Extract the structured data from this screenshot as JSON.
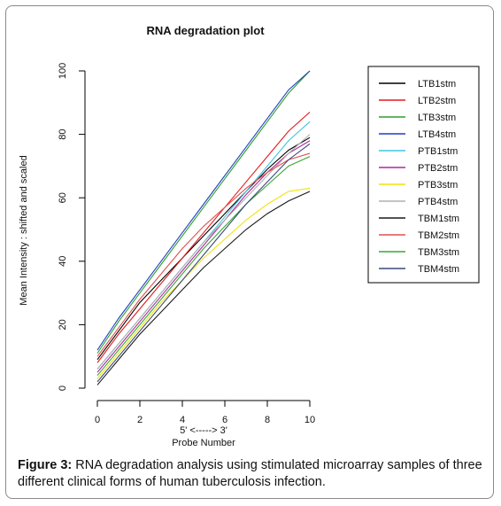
{
  "figure": {
    "caption_label": "Figure 3:",
    "caption_text": " RNA degradation analysis using stimulated microarray samples of three different clinical forms of human tuberculosis infection."
  },
  "chart_data": {
    "type": "line",
    "title": "RNA degradation plot",
    "ylabel": "Mean Intensity : shifted and scaled",
    "xlabel_top": "5' <-----> 3'",
    "xlabel": "Probe Number",
    "xlim": [
      0,
      10
    ],
    "ylim": [
      0,
      100
    ],
    "x_ticks": [
      "0",
      "2",
      "4",
      "6",
      "8",
      "10"
    ],
    "y_ticks": [
      "0",
      "20",
      "40",
      "60",
      "80",
      "100"
    ],
    "legend_position": "top-right",
    "x": [
      0,
      1,
      2,
      3,
      4,
      5,
      6,
      7,
      8,
      9,
      10
    ],
    "series": [
      {
        "name": "LTB1stm",
        "color": "#000000",
        "values": [
          9,
          18,
          27,
          34,
          41,
          48,
          55,
          62,
          69,
          75,
          79
        ]
      },
      {
        "name": "LTB2stm",
        "color": "#e41a1c",
        "values": [
          8,
          17,
          25,
          33,
          41,
          49,
          57,
          65,
          73,
          81,
          87
        ]
      },
      {
        "name": "LTB3stm",
        "color": "#2ca02c",
        "values": [
          11,
          21,
          30,
          39,
          48,
          57,
          66,
          75,
          84,
          93,
          100
        ]
      },
      {
        "name": "LTB4stm",
        "color": "#1f3fbf",
        "values": [
          12,
          22,
          31,
          40,
          49,
          58,
          67,
          76,
          85,
          94,
          100
        ]
      },
      {
        "name": "PTB1stm",
        "color": "#3ec6e0",
        "values": [
          6,
          14,
          22,
          30,
          38,
          46,
          54,
          62,
          70,
          78,
          84
        ]
      },
      {
        "name": "PTB2stm",
        "color": "#b0289a",
        "values": [
          5,
          13,
          21,
          29,
          37,
          45,
          53,
          61,
          68,
          74,
          78
        ]
      },
      {
        "name": "PTB3stm",
        "color": "#f2e20a",
        "values": [
          3,
          11,
          19,
          27,
          34,
          41,
          47,
          53,
          58,
          62,
          63
        ]
      },
      {
        "name": "PTB4stm",
        "color": "#b0b0b0",
        "values": [
          6,
          14,
          22,
          30,
          38,
          46,
          53,
          60,
          67,
          74,
          80
        ]
      },
      {
        "name": "TBM1stm",
        "color": "#1a1a1a",
        "values": [
          1,
          9,
          17,
          24,
          31,
          38,
          44,
          50,
          55,
          59,
          62
        ]
      },
      {
        "name": "TBM2stm",
        "color": "#e05050",
        "values": [
          10,
          19,
          28,
          36,
          44,
          51,
          57,
          63,
          68,
          72,
          74
        ]
      },
      {
        "name": "TBM3stm",
        "color": "#37a837",
        "values": [
          4,
          12,
          20,
          28,
          36,
          44,
          51,
          58,
          64,
          70,
          73
        ]
      },
      {
        "name": "TBM4stm",
        "color": "#3a4a7a",
        "values": [
          2,
          10,
          18,
          26,
          34,
          42,
          50,
          58,
          65,
          72,
          77
        ]
      }
    ]
  }
}
